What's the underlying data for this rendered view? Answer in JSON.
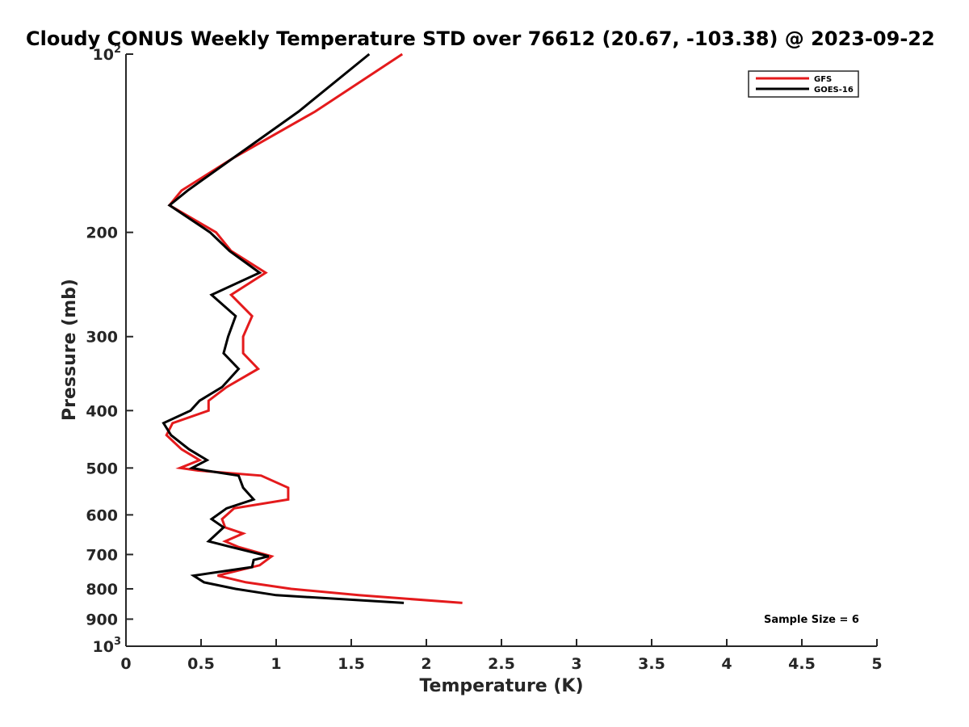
{
  "chart_data": {
    "type": "line",
    "title": "Cloudy CONUS Weekly Temperature STD over 76612 (20.67, -103.38) @ 2023-09-22",
    "xlabel": "Temperature (K)",
    "ylabel": "Pressure (mb)",
    "xlim": [
      0,
      5
    ],
    "ylim": [
      100,
      1000
    ],
    "y_scale": "log",
    "y_reversed": true,
    "grid": false,
    "legend_position": "top-right",
    "x_ticks": [
      "0",
      "0.5",
      "1",
      "1.5",
      "2",
      "2.5",
      "3",
      "3.5",
      "4",
      "4.5",
      "5"
    ],
    "y_ticks": [
      {
        "value": 100,
        "base": "10",
        "exp": "2"
      },
      {
        "value": 200,
        "base": "200",
        "exp": ""
      },
      {
        "value": 300,
        "base": "300",
        "exp": ""
      },
      {
        "value": 400,
        "base": "400",
        "exp": ""
      },
      {
        "value": 500,
        "base": "500",
        "exp": ""
      },
      {
        "value": 600,
        "base": "600",
        "exp": ""
      },
      {
        "value": 700,
        "base": "700",
        "exp": ""
      },
      {
        "value": 800,
        "base": "800",
        "exp": ""
      },
      {
        "value": 900,
        "base": "900",
        "exp": ""
      },
      {
        "value": 1000,
        "base": "10",
        "exp": "3"
      }
    ],
    "series": [
      {
        "name": "GFS",
        "color": "#e41a1c",
        "points": [
          [
            1.84,
            100
          ],
          [
            1.26,
            125
          ],
          [
            0.71,
            150
          ],
          [
            0.37,
            170
          ],
          [
            0.29,
            180
          ],
          [
            0.6,
            200
          ],
          [
            0.7,
            215
          ],
          [
            0.93,
            234
          ],
          [
            0.7,
            255
          ],
          [
            0.84,
            277
          ],
          [
            0.78,
            300
          ],
          [
            0.78,
            320
          ],
          [
            0.88,
            340
          ],
          [
            0.67,
            365
          ],
          [
            0.55,
            385
          ],
          [
            0.55,
            400
          ],
          [
            0.31,
            420
          ],
          [
            0.27,
            440
          ],
          [
            0.37,
            465
          ],
          [
            0.49,
            485
          ],
          [
            0.36,
            500
          ],
          [
            0.48,
            505
          ],
          [
            0.9,
            515
          ],
          [
            1.08,
            540
          ],
          [
            1.08,
            565
          ],
          [
            0.72,
            585
          ],
          [
            0.64,
            610
          ],
          [
            0.66,
            630
          ],
          [
            0.78,
            645
          ],
          [
            0.66,
            665
          ],
          [
            0.75,
            680
          ],
          [
            0.97,
            705
          ],
          [
            0.89,
            730
          ],
          [
            0.61,
            760
          ],
          [
            0.8,
            780
          ],
          [
            1.1,
            800
          ],
          [
            1.55,
            820
          ],
          [
            2.24,
            845
          ]
        ]
      },
      {
        "name": "GOES-16",
        "color": "#000000",
        "points": [
          [
            1.62,
            100
          ],
          [
            1.15,
            125
          ],
          [
            0.71,
            150
          ],
          [
            0.41,
            170
          ],
          [
            0.29,
            180
          ],
          [
            0.56,
            200
          ],
          [
            0.69,
            215
          ],
          [
            0.89,
            234
          ],
          [
            0.57,
            255
          ],
          [
            0.73,
            277
          ],
          [
            0.68,
            300
          ],
          [
            0.65,
            320
          ],
          [
            0.75,
            340
          ],
          [
            0.64,
            365
          ],
          [
            0.49,
            385
          ],
          [
            0.43,
            400
          ],
          [
            0.25,
            420
          ],
          [
            0.3,
            440
          ],
          [
            0.42,
            465
          ],
          [
            0.54,
            485
          ],
          [
            0.44,
            500
          ],
          [
            0.53,
            505
          ],
          [
            0.75,
            515
          ],
          [
            0.78,
            540
          ],
          [
            0.85,
            565
          ],
          [
            0.67,
            585
          ],
          [
            0.57,
            610
          ],
          [
            0.65,
            630
          ],
          [
            0.55,
            665
          ],
          [
            0.7,
            680
          ],
          [
            0.95,
            705
          ],
          [
            0.85,
            715
          ],
          [
            0.84,
            735
          ],
          [
            0.45,
            760
          ],
          [
            0.52,
            780
          ],
          [
            0.73,
            800
          ],
          [
            1.0,
            820
          ],
          [
            1.85,
            845
          ]
        ]
      }
    ],
    "annotations": [
      {
        "text": "Sample Size = 6"
      }
    ]
  }
}
